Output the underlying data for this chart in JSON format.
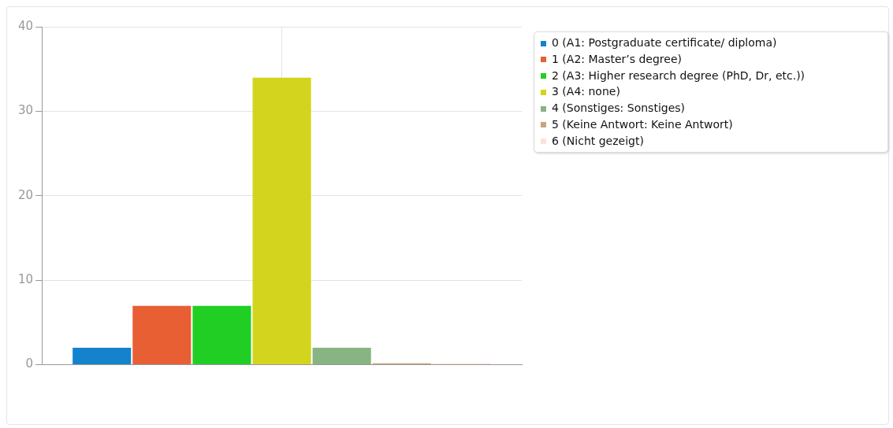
{
  "chart_data": {
    "type": "bar",
    "categories": [
      null
    ],
    "series": [
      {
        "name": "0 (A1: Postgraduate certificate/ diploma)",
        "color": "#1483cc",
        "values": [
          2
        ]
      },
      {
        "name": "1 (A2: Master’s degree)",
        "color": "#e85f33",
        "values": [
          7
        ]
      },
      {
        "name": "2 (A3: Higher research degree  (PhD, Dr, etc.))",
        "color": "#21cf24",
        "values": [
          7
        ]
      },
      {
        "name": "3 (A4: none)",
        "color": "#d2d41e",
        "values": [
          34
        ]
      },
      {
        "name": "4 (Sonstiges: Sonstiges)",
        "color": "#88b383",
        "values": [
          2
        ]
      },
      {
        "name": "5 (Keine Antwort: Keine Antwort)",
        "color": "#c9a47c",
        "values": [
          0
        ]
      },
      {
        "name": "6 (Nicht gezeigt)",
        "color": "#fbe3da",
        "values": [
          0
        ]
      }
    ],
    "ylim": [
      0,
      40
    ],
    "yticks": [
      0,
      10,
      20,
      30,
      40
    ],
    "grid": true,
    "legend": "top right"
  }
}
